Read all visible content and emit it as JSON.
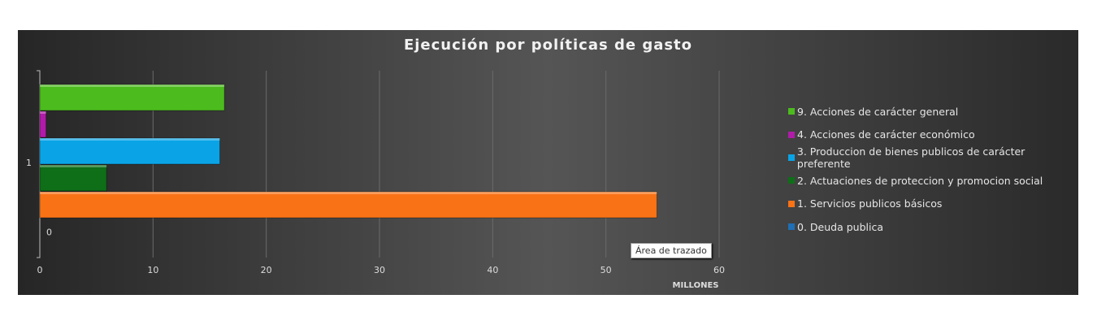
{
  "chart_data": {
    "type": "bar",
    "orientation": "horizontal",
    "title": "Ejecución por políticas de gasto",
    "xlabel": "MILLONES",
    "categories": [
      "1"
    ],
    "xlim": [
      0,
      60
    ],
    "xticks": [
      "0",
      "10",
      "20",
      "30",
      "40",
      "50",
      "60"
    ],
    "grid": true,
    "legend_position": "right",
    "series": [
      {
        "name": "0. Deuda publica",
        "values": [
          0
        ],
        "color": "#1f6fb5",
        "data_label": "0"
      },
      {
        "name": "1. Servicios publicos básicos",
        "values": [
          54.5
        ],
        "color": "#f97316"
      },
      {
        "name": "2. Actuaciones de proteccion y promocion social",
        "values": [
          5.9
        ],
        "color": "#0f6e18"
      },
      {
        "name": "3. Produccion de bienes publicos de carácter preferente",
        "values": [
          15.9
        ],
        "color": "#0aa4e6"
      },
      {
        "name": "4. Acciones de carácter económico",
        "values": [
          0.55
        ],
        "color": "#b01ca8"
      },
      {
        "name": "9. Acciones de carácter general",
        "values": [
          16.3
        ],
        "color": "#4cbb1e"
      }
    ]
  },
  "tooltip": "Área de trazado"
}
